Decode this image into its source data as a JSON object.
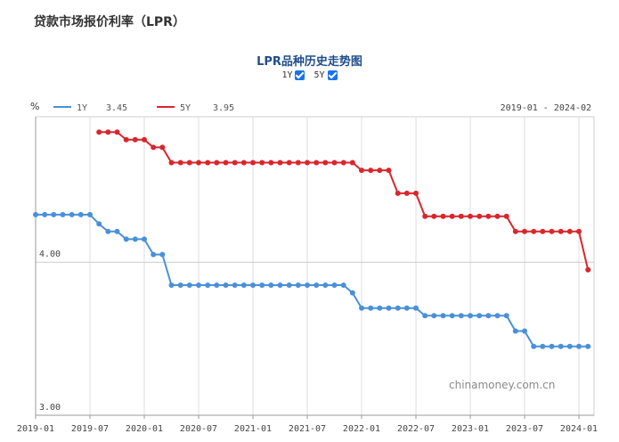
{
  "page_title": "贷款市场报价利率（LPR）",
  "chart_title": "LPR品种历史走势图",
  "toggles": [
    {
      "label": "1Y",
      "checked": true
    },
    {
      "label": "5Y",
      "checked": true
    }
  ],
  "watermark": "chinamoney.com.cn",
  "colors": {
    "one_year": "#4a90d9",
    "five_year": "#d9262c",
    "checkbox": "#1a73e8",
    "title": "#1f4e8c"
  },
  "chart_data": {
    "type": "line",
    "y_unit": "%",
    "date_range": "2019-01 - 2024-02",
    "ylim": [
      3.0,
      4.95
    ],
    "ytick_labels": [
      "4.00",
      "3.00"
    ],
    "x_ticks": [
      "2019-01",
      "2019-07",
      "2020-01",
      "2020-07",
      "2021-01",
      "2021-07",
      "2022-01",
      "2022-07",
      "2023-01",
      "2023-07",
      "2024-01"
    ],
    "grid": true,
    "legend_position": "top-left",
    "series": [
      {
        "name": "1Y",
        "latest": "3.45",
        "color": "#4a90d9",
        "points": [
          [
            "2019-01",
            4.31
          ],
          [
            "2019-02",
            4.31
          ],
          [
            "2019-03",
            4.31
          ],
          [
            "2019-04",
            4.31
          ],
          [
            "2019-05",
            4.31
          ],
          [
            "2019-06",
            4.31
          ],
          [
            "2019-07",
            4.31
          ],
          [
            "2019-08",
            4.25
          ],
          [
            "2019-09",
            4.2
          ],
          [
            "2019-10",
            4.2
          ],
          [
            "2019-11",
            4.15
          ],
          [
            "2019-12",
            4.15
          ],
          [
            "2020-01",
            4.15
          ],
          [
            "2020-02",
            4.05
          ],
          [
            "2020-03",
            4.05
          ],
          [
            "2020-04",
            3.85
          ],
          [
            "2020-05",
            3.85
          ],
          [
            "2020-06",
            3.85
          ],
          [
            "2020-07",
            3.85
          ],
          [
            "2020-08",
            3.85
          ],
          [
            "2020-09",
            3.85
          ],
          [
            "2020-10",
            3.85
          ],
          [
            "2020-11",
            3.85
          ],
          [
            "2020-12",
            3.85
          ],
          [
            "2021-01",
            3.85
          ],
          [
            "2021-02",
            3.85
          ],
          [
            "2021-03",
            3.85
          ],
          [
            "2021-04",
            3.85
          ],
          [
            "2021-05",
            3.85
          ],
          [
            "2021-06",
            3.85
          ],
          [
            "2021-07",
            3.85
          ],
          [
            "2021-08",
            3.85
          ],
          [
            "2021-09",
            3.85
          ],
          [
            "2021-10",
            3.85
          ],
          [
            "2021-11",
            3.85
          ],
          [
            "2021-12",
            3.8
          ],
          [
            "2022-01",
            3.7
          ],
          [
            "2022-02",
            3.7
          ],
          [
            "2022-03",
            3.7
          ],
          [
            "2022-04",
            3.7
          ],
          [
            "2022-05",
            3.7
          ],
          [
            "2022-06",
            3.7
          ],
          [
            "2022-07",
            3.7
          ],
          [
            "2022-08",
            3.65
          ],
          [
            "2022-09",
            3.65
          ],
          [
            "2022-10",
            3.65
          ],
          [
            "2022-11",
            3.65
          ],
          [
            "2022-12",
            3.65
          ],
          [
            "2023-01",
            3.65
          ],
          [
            "2023-02",
            3.65
          ],
          [
            "2023-03",
            3.65
          ],
          [
            "2023-04",
            3.65
          ],
          [
            "2023-05",
            3.65
          ],
          [
            "2023-06",
            3.55
          ],
          [
            "2023-07",
            3.55
          ],
          [
            "2023-08",
            3.45
          ],
          [
            "2023-09",
            3.45
          ],
          [
            "2023-10",
            3.45
          ],
          [
            "2023-11",
            3.45
          ],
          [
            "2023-12",
            3.45
          ],
          [
            "2024-01",
            3.45
          ],
          [
            "2024-02",
            3.45
          ]
        ]
      },
      {
        "name": "5Y",
        "latest": "3.95",
        "color": "#d9262c",
        "points": [
          [
            "2019-08",
            4.85
          ],
          [
            "2019-09",
            4.85
          ],
          [
            "2019-10",
            4.85
          ],
          [
            "2019-11",
            4.8
          ],
          [
            "2019-12",
            4.8
          ],
          [
            "2020-01",
            4.8
          ],
          [
            "2020-02",
            4.75
          ],
          [
            "2020-03",
            4.75
          ],
          [
            "2020-04",
            4.65
          ],
          [
            "2020-05",
            4.65
          ],
          [
            "2020-06",
            4.65
          ],
          [
            "2020-07",
            4.65
          ],
          [
            "2020-08",
            4.65
          ],
          [
            "2020-09",
            4.65
          ],
          [
            "2020-10",
            4.65
          ],
          [
            "2020-11",
            4.65
          ],
          [
            "2020-12",
            4.65
          ],
          [
            "2021-01",
            4.65
          ],
          [
            "2021-02",
            4.65
          ],
          [
            "2021-03",
            4.65
          ],
          [
            "2021-04",
            4.65
          ],
          [
            "2021-05",
            4.65
          ],
          [
            "2021-06",
            4.65
          ],
          [
            "2021-07",
            4.65
          ],
          [
            "2021-08",
            4.65
          ],
          [
            "2021-09",
            4.65
          ],
          [
            "2021-10",
            4.65
          ],
          [
            "2021-11",
            4.65
          ],
          [
            "2021-12",
            4.65
          ],
          [
            "2022-01",
            4.6
          ],
          [
            "2022-02",
            4.6
          ],
          [
            "2022-03",
            4.6
          ],
          [
            "2022-04",
            4.6
          ],
          [
            "2022-05",
            4.45
          ],
          [
            "2022-06",
            4.45
          ],
          [
            "2022-07",
            4.45
          ],
          [
            "2022-08",
            4.3
          ],
          [
            "2022-09",
            4.3
          ],
          [
            "2022-10",
            4.3
          ],
          [
            "2022-11",
            4.3
          ],
          [
            "2022-12",
            4.3
          ],
          [
            "2023-01",
            4.3
          ],
          [
            "2023-02",
            4.3
          ],
          [
            "2023-03",
            4.3
          ],
          [
            "2023-04",
            4.3
          ],
          [
            "2023-05",
            4.3
          ],
          [
            "2023-06",
            4.2
          ],
          [
            "2023-07",
            4.2
          ],
          [
            "2023-08",
            4.2
          ],
          [
            "2023-09",
            4.2
          ],
          [
            "2023-10",
            4.2
          ],
          [
            "2023-11",
            4.2
          ],
          [
            "2023-12",
            4.2
          ],
          [
            "2024-01",
            4.2
          ],
          [
            "2024-02",
            3.95
          ]
        ]
      }
    ]
  }
}
